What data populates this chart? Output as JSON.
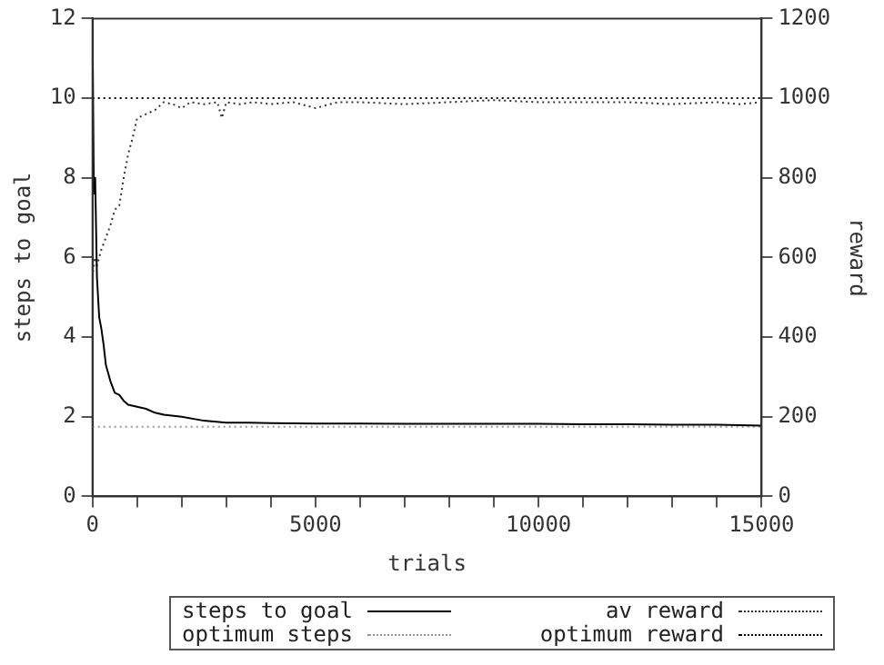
{
  "chart_data": {
    "type": "line",
    "xlabel": "trials",
    "ylabel": "steps to goal",
    "y2label": "reward",
    "xlim": [
      0,
      15000
    ],
    "xticks": [
      0,
      {
        "value": 1000,
        "label": null
      },
      {
        "value": 2000,
        "label": null
      },
      {
        "value": 3000,
        "label": null
      },
      {
        "value": 4000,
        "label": null
      },
      5000,
      {
        "value": 6000,
        "label": null
      },
      {
        "value": 7000,
        "label": null
      },
      {
        "value": 8000,
        "label": null
      },
      {
        "value": 9000,
        "label": null
      },
      10000,
      {
        "value": 11000,
        "label": null
      },
      {
        "value": 12000,
        "label": null
      },
      {
        "value": 13000,
        "label": null
      },
      {
        "value": 14000,
        "label": null
      },
      15000
    ],
    "ylim": [
      0,
      12
    ],
    "yticks": [
      0,
      2,
      4,
      6,
      8,
      10,
      12
    ],
    "y2lim": [
      0,
      1200
    ],
    "y2ticks": [
      0,
      200,
      400,
      600,
      800,
      1000,
      1200
    ],
    "grid": false,
    "legend": "bottom",
    "marker": "none",
    "series": [
      {
        "name": "steps to goal",
        "color": "#000000",
        "line_style": "solid",
        "x": [
          0,
          30,
          60,
          100,
          150,
          200,
          250,
          300,
          400,
          500,
          600,
          700,
          800,
          1000,
          1200,
          1400,
          1600,
          2000,
          2500,
          3000,
          3500,
          4000,
          5000,
          6000,
          7000,
          8000,
          9000,
          10000,
          11000,
          12000,
          13000,
          14000,
          15000
        ],
        "values": [
          12,
          7.6,
          8,
          5.5,
          4.5,
          4.2,
          3.8,
          3.3,
          2.9,
          2.6,
          2.55,
          2.4,
          2.3,
          2.25,
          2.2,
          2.1,
          2.05,
          2.0,
          1.9,
          1.85,
          1.85,
          1.84,
          1.83,
          1.83,
          1.82,
          1.82,
          1.82,
          1.82,
          1.81,
          1.81,
          1.8,
          1.8,
          1.78
        ]
      },
      {
        "name": "optimum steps",
        "color": "#999999",
        "line_style": "dotted",
        "x": [
          0,
          15000
        ],
        "values": [
          1.75,
          1.75
        ]
      },
      {
        "name": "av reward",
        "color": "#333333",
        "line_style": "dotted",
        "axis": "y2",
        "x": [
          0,
          50,
          100,
          200,
          300,
          400,
          500,
          600,
          700,
          800,
          900,
          1000,
          1200,
          1400,
          1600,
          1800,
          2000,
          2200,
          2500,
          2800,
          2900,
          3000,
          3300,
          3600,
          4000,
          4500,
          5000,
          5500,
          6000,
          7000,
          8000,
          9000,
          10000,
          11000,
          12000,
          13000,
          14000,
          14500,
          15000
        ],
        "values": [
          550,
          600,
          580,
          620,
          650,
          680,
          720,
          730,
          800,
          860,
          900,
          950,
          960,
          970,
          990,
          985,
          975,
          990,
          985,
          990,
          950,
          990,
          985,
          990,
          985,
          990,
          975,
          990,
          990,
          985,
          990,
          995,
          990,
          990,
          990,
          985,
          990,
          985,
          990
        ]
      },
      {
        "name": "optimum reward",
        "color": "#000000",
        "line_style": "dotted",
        "axis": "y2",
        "x": [
          0,
          15000
        ],
        "values": [
          1000,
          1000
        ]
      }
    ]
  }
}
